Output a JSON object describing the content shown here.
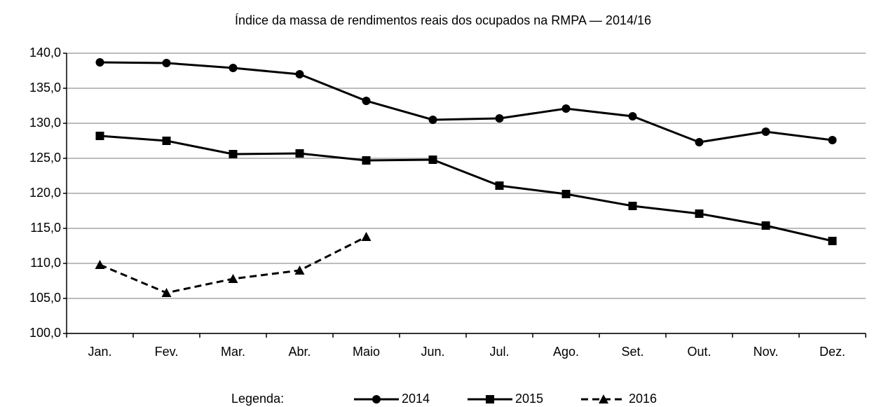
{
  "chart_data": {
    "type": "line",
    "title": "Índice da massa de rendimentos reais dos ocupados na RMPA — 2014/16",
    "categories": [
      "Jan.",
      "Fev.",
      "Mar.",
      "Abr.",
      "Maio",
      "Jun.",
      "Jul.",
      "Ago.",
      "Set.",
      "Out.",
      "Nov.",
      "Dez."
    ],
    "series": [
      {
        "name": "2014",
        "color": "#000000",
        "marker": "circle",
        "dashed": false,
        "values": [
          138.7,
          138.6,
          137.9,
          137.0,
          133.2,
          130.5,
          130.7,
          132.1,
          131.0,
          127.3,
          128.8,
          127.6
        ]
      },
      {
        "name": "2015",
        "color": "#000000",
        "marker": "square",
        "dashed": false,
        "values": [
          128.2,
          127.5,
          125.6,
          125.7,
          124.7,
          124.8,
          121.1,
          119.9,
          118.2,
          117.1,
          115.4,
          113.2
        ]
      },
      {
        "name": "2016",
        "color": "#000000",
        "marker": "triangle",
        "dashed": true,
        "values": [
          109.8,
          105.8,
          107.8,
          109.0,
          113.8,
          null,
          null,
          null,
          null,
          null,
          null,
          null
        ]
      }
    ],
    "ylim": [
      100,
      140
    ],
    "yticks": [
      {
        "value": 100,
        "label": "100,0"
      },
      {
        "value": 105,
        "label": "105,0"
      },
      {
        "value": 110,
        "label": "110,0"
      },
      {
        "value": 115,
        "label": "115,0"
      },
      {
        "value": 120,
        "label": "120,0"
      },
      {
        "value": 125,
        "label": "125,0"
      },
      {
        "value": 130,
        "label": "130,0"
      },
      {
        "value": 135,
        "label": "135,0"
      },
      {
        "value": 140,
        "label": "140,0"
      }
    ],
    "grid": true,
    "legend_title": "Legenda:",
    "legend_position": "bottom"
  }
}
